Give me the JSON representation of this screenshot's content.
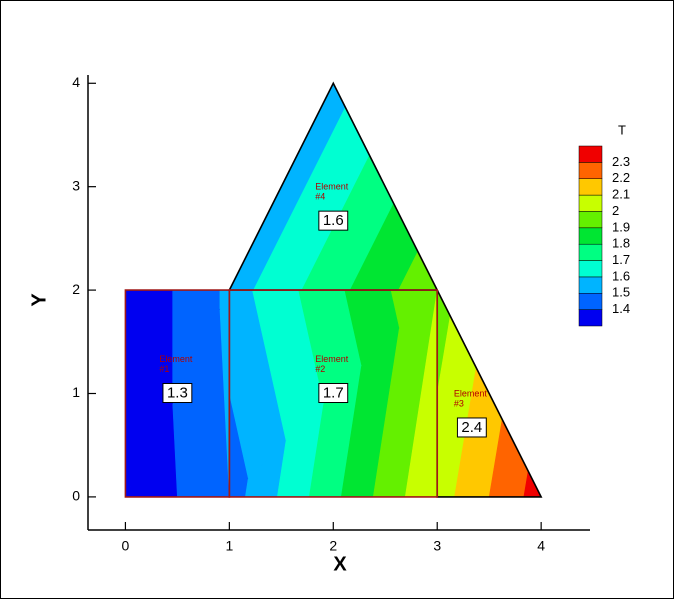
{
  "chart_data": {
    "type": "contour",
    "x_label": "X",
    "y_label": "Y",
    "xlim": [
      -0.36,
      4.47
    ],
    "ylim": [
      -0.32,
      4.08
    ],
    "xticks": [
      0,
      1,
      2,
      3,
      4
    ],
    "yticks": [
      0,
      1,
      2,
      3,
      4
    ],
    "legend": {
      "title": "T",
      "levels": [
        1.4,
        1.5,
        1.6,
        1.7,
        1.8,
        1.9,
        2,
        2.1,
        2.2,
        2.3
      ],
      "colors": [
        "#0000f0",
        "#0064ff",
        "#00b4ff",
        "#00ffd2",
        "#00ff82",
        "#00e632",
        "#64f000",
        "#c8ff00",
        "#ffc800",
        "#ff6400",
        "#f00000"
      ]
    },
    "elements": [
      {
        "label": [
          "Element",
          "#1"
        ],
        "value": 1.3,
        "stroke": "#a01818",
        "x": [
          0,
          1,
          1,
          0
        ],
        "y": [
          0,
          0,
          2,
          2
        ],
        "T": [
          1.3,
          1.5,
          1.52,
          1.3
        ]
      },
      {
        "label": [
          "Element",
          "#2"
        ],
        "value": 1.7,
        "stroke": "#a01818",
        "x": [
          1,
          3,
          3,
          1
        ],
        "y": [
          0,
          0,
          2,
          2
        ],
        "T": [
          1.45,
          2.1,
          2.0,
          1.55
        ]
      },
      {
        "label": [
          "Element",
          "#3"
        ],
        "value": 2.4,
        "stroke": "#000000",
        "x": [
          3,
          4,
          3
        ],
        "y": [
          0,
          0,
          2
        ],
        "T": [
          2.05,
          2.35,
          1.95
        ]
      },
      {
        "label": [
          "Element",
          "#4"
        ],
        "value": 1.6,
        "stroke": "#000000",
        "x": [
          1,
          3,
          2
        ],
        "y": [
          2,
          2,
          4
        ],
        "T": [
          1.55,
          1.98,
          1.55
        ]
      }
    ]
  }
}
